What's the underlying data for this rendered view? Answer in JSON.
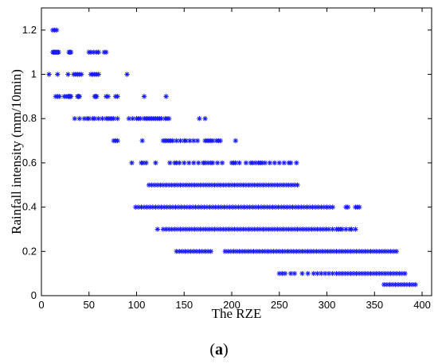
{
  "chart_data": {
    "type": "scatter",
    "title": "",
    "xlabel": "The RZE",
    "ylabel": "Rainfall intensity (mm/10min)",
    "panel_label_open": "(",
    "panel_label_bold": "a",
    "panel_label_close": ")",
    "xlim": [
      0,
      410
    ],
    "ylim": [
      0,
      1.3
    ],
    "xticks": [
      0,
      50,
      100,
      150,
      200,
      250,
      300,
      350,
      400
    ],
    "xtick_labels": [
      "0",
      "50",
      "100",
      "150",
      "200",
      "250",
      "300",
      "350",
      "400"
    ],
    "yticks": [
      0,
      0.2,
      0.4,
      0.6,
      0.8,
      1.0,
      1.2
    ],
    "ytick_labels": [
      "0",
      "0.2",
      "0.4",
      "0.6",
      "0.8",
      "1",
      "1.2"
    ],
    "grid": false,
    "marker": "asterisk",
    "marker_color": "#1a1aff",
    "series": [
      {
        "rows": [
          {
            "y": 1.2,
            "x": [
              12,
              14,
              16
            ]
          },
          {
            "y": 1.1,
            "x": [
              12,
              13,
              14,
              15,
              16,
              17,
              18,
              29,
              30,
              31,
              50,
              52,
              55,
              58,
              60,
              66,
              68
            ]
          },
          {
            "y": 1.0,
            "x": [
              8,
              17,
              28,
              34,
              36,
              38,
              40,
              42,
              52,
              54,
              56,
              58,
              60,
              90
            ]
          },
          {
            "y": 0.9,
            "x": [
              15,
              17,
              19,
              24,
              26,
              28,
              29,
              30,
              31,
              38,
              39,
              40,
              56,
              57,
              58,
              68,
              70,
              78,
              80,
              108,
              131
            ]
          },
          {
            "y": 0.8,
            "x": [
              35,
              40,
              45,
              48,
              50,
              54,
              56,
              60,
              64,
              68,
              70,
              72,
              74,
              76,
              80,
              92,
              96,
              100,
              102,
              104,
              108,
              110,
              112,
              114,
              116,
              118,
              120,
              122,
              124,
              126,
              130,
              132,
              134,
              166,
              172
            ]
          },
          {
            "y": 0.7,
            "x": [
              76,
              78,
              80,
              106,
              128,
              130,
              132,
              134,
              136,
              138,
              142,
              146,
              150,
              152,
              156,
              160,
              164,
              172,
              174,
              176,
              178,
              180,
              184,
              186,
              188,
              204
            ]
          },
          {
            "y": 0.6,
            "x": [
              95,
              105,
              107,
              110,
              120,
              135,
              140,
              142,
              145,
              150,
              155,
              160,
              165,
              170,
              172,
              175,
              178,
              180,
              185,
              190,
              200,
              202,
              204,
              208,
              215,
              220,
              222,
              225,
              228,
              230,
              232,
              235,
              240,
              245,
              250,
              255,
              260,
              262,
              268
            ]
          },
          {
            "y": 0.5,
            "x": [
              113,
              116,
              119,
              122,
              125,
              128,
              131,
              134,
              137,
              140,
              143,
              146,
              149,
              152,
              155,
              158,
              161,
              164,
              167,
              170,
              173,
              176,
              179,
              182,
              185,
              188,
              191,
              194,
              197,
              200,
              203,
              206,
              209,
              212,
              215,
              218,
              221,
              224,
              227,
              230,
              233,
              236,
              239,
              242,
              245,
              248,
              251,
              254,
              257,
              260,
              263,
              266,
              269
            ]
          },
          {
            "y": 0.4,
            "x": [
              99,
              102,
              105,
              108,
              111,
              114,
              117,
              120,
              123,
              126,
              129,
              132,
              135,
              138,
              141,
              144,
              147,
              150,
              153,
              156,
              159,
              162,
              165,
              168,
              171,
              174,
              177,
              180,
              183,
              186,
              189,
              192,
              195,
              198,
              201,
              204,
              207,
              210,
              213,
              216,
              219,
              222,
              225,
              228,
              231,
              234,
              237,
              240,
              243,
              246,
              249,
              252,
              255,
              258,
              261,
              264,
              267,
              270,
              273,
              276,
              279,
              282,
              285,
              288,
              291,
              294,
              297,
              300,
              303,
              306,
              320,
              322,
              330,
              332,
              334
            ]
          },
          {
            "y": 0.3,
            "x": [
              122,
              128,
              131,
              134,
              137,
              140,
              143,
              146,
              149,
              152,
              155,
              158,
              161,
              164,
              167,
              170,
              173,
              176,
              179,
              182,
              185,
              188,
              191,
              194,
              197,
              200,
              203,
              206,
              209,
              212,
              215,
              218,
              221,
              224,
              227,
              230,
              233,
              236,
              239,
              242,
              245,
              248,
              251,
              254,
              257,
              260,
              263,
              266,
              269,
              272,
              275,
              278,
              281,
              284,
              287,
              290,
              293,
              296,
              299,
              302,
              306,
              310,
              312,
              314,
              316,
              320,
              324,
              326,
              330
            ]
          },
          {
            "y": 0.2,
            "x": [
              142,
              145,
              148,
              151,
              154,
              157,
              160,
              163,
              166,
              169,
              172,
              175,
              178,
              193,
              196,
              199,
              202,
              205,
              208,
              211,
              214,
              217,
              220,
              223,
              226,
              229,
              232,
              235,
              238,
              241,
              244,
              247,
              250,
              253,
              256,
              259,
              262,
              265,
              268,
              271,
              274,
              277,
              280,
              283,
              286,
              289,
              292,
              295,
              298,
              301,
              304,
              307,
              310,
              313,
              316,
              319,
              322,
              325,
              328,
              331,
              334,
              337,
              340,
              343,
              346,
              349,
              352,
              355,
              358,
              361,
              364,
              367,
              370,
              373
            ]
          },
          {
            "y": 0.1,
            "x": [
              250,
              253,
              256,
              262,
              266,
              274,
              280,
              286,
              290,
              294,
              298,
              302,
              306,
              310,
              313,
              316,
              319,
              322,
              325,
              328,
              331,
              334,
              337,
              340,
              343,
              346,
              349,
              352,
              355,
              358,
              361,
              364,
              367,
              370,
              373,
              376,
              379,
              382
            ]
          },
          {
            "y": 0.05,
            "x": [
              360,
              363,
              366,
              369,
              372,
              375,
              378,
              381,
              384,
              387,
              390,
              393
            ]
          }
        ]
      }
    ]
  }
}
